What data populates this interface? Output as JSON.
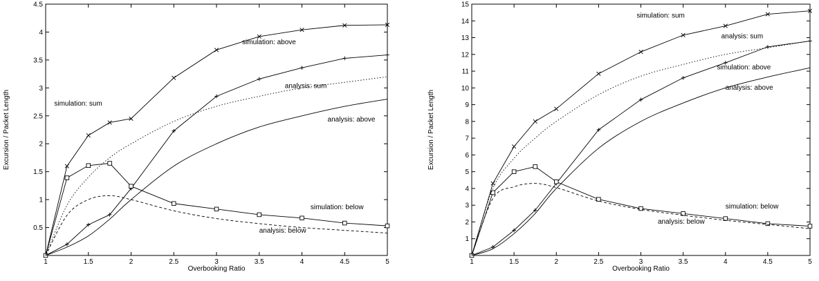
{
  "chart_data": [
    {
      "type": "line",
      "xlabel": "Overbooking Ratio",
      "ylabel": "Excursion / Packet Length",
      "xlim": [
        1,
        5
      ],
      "ylim": [
        0,
        4.5
      ],
      "xticks": [
        1,
        1.5,
        2,
        2.5,
        3,
        3.5,
        4,
        4.5,
        5
      ],
      "yticks": [
        0.5,
        1,
        1.5,
        2,
        2.5,
        3,
        3.5,
        4,
        4.5
      ],
      "grid": false,
      "series": [
        {
          "name": "simulation: sum",
          "style": "solid",
          "marker": "x",
          "x": [
            1,
            1.25,
            1.5,
            1.75,
            2,
            2.5,
            3,
            3.5,
            4,
            4.5,
            5
          ],
          "y": [
            0,
            1.6,
            2.15,
            2.38,
            2.45,
            3.18,
            3.68,
            3.92,
            4.04,
            4.12,
            4.13
          ]
        },
        {
          "name": "simulation: above",
          "style": "solid",
          "marker": "+",
          "x": [
            1,
            1.25,
            1.5,
            1.75,
            2,
            2.5,
            3,
            3.5,
            4,
            4.5,
            5
          ],
          "y": [
            0,
            0.2,
            0.55,
            0.73,
            1.2,
            2.23,
            2.85,
            3.16,
            3.36,
            3.53,
            3.59
          ]
        },
        {
          "name": "simulation: below",
          "style": "solid",
          "marker": "square",
          "x": [
            1,
            1.25,
            1.5,
            1.75,
            2,
            2.5,
            3,
            3.5,
            4,
            4.5,
            5
          ],
          "y": [
            0,
            1.39,
            1.61,
            1.65,
            1.24,
            0.93,
            0.83,
            0.73,
            0.67,
            0.58,
            0.53
          ]
        },
        {
          "name": "analysis: sum",
          "style": "dotted",
          "marker": "none",
          "x": [
            1,
            1.25,
            1.5,
            1.75,
            2,
            2.5,
            3,
            3.5,
            4,
            4.5,
            5
          ],
          "y": [
            0,
            0.9,
            1.4,
            1.75,
            2.0,
            2.4,
            2.67,
            2.85,
            3.0,
            3.1,
            3.2
          ]
        },
        {
          "name": "analysis: above",
          "style": "solid",
          "marker": "none",
          "x": [
            1,
            1.25,
            1.5,
            1.75,
            2,
            2.5,
            3,
            3.5,
            4,
            4.5,
            5
          ],
          "y": [
            0,
            0.15,
            0.35,
            0.65,
            1.0,
            1.6,
            2.0,
            2.3,
            2.5,
            2.67,
            2.8
          ]
        },
        {
          "name": "analysis: below",
          "style": "dashed",
          "marker": "none",
          "x": [
            1,
            1.25,
            1.5,
            1.75,
            2,
            2.5,
            3,
            3.5,
            4,
            4.5,
            5
          ],
          "y": [
            0,
            0.72,
            1.0,
            1.07,
            1.0,
            0.8,
            0.66,
            0.57,
            0.5,
            0.45,
            0.4
          ]
        }
      ],
      "annotations": [
        {
          "text": "simulation: sum",
          "x": 1.1,
          "y": 2.68
        },
        {
          "text": "simulation: above",
          "x": 3.3,
          "y": 3.78
        },
        {
          "text": "analysis: sum",
          "x": 3.8,
          "y": 3.0
        },
        {
          "text": "analysis: above",
          "x": 4.3,
          "y": 2.4
        },
        {
          "text": "simulation: below",
          "x": 4.1,
          "y": 0.83
        },
        {
          "text": "analysis: below",
          "x": 3.5,
          "y": 0.41
        }
      ]
    },
    {
      "type": "line",
      "xlabel": "Overbooking Ratio",
      "ylabel": "Excursion / Packet Length",
      "xlim": [
        1,
        5
      ],
      "ylim": [
        0,
        15
      ],
      "xticks": [
        1,
        1.5,
        2,
        2.5,
        3,
        3.5,
        4,
        4.5,
        5
      ],
      "yticks": [
        1,
        2,
        3,
        4,
        5,
        6,
        7,
        8,
        9,
        10,
        11,
        12,
        13,
        14,
        15
      ],
      "grid": false,
      "series": [
        {
          "name": "simulation: sum",
          "style": "solid",
          "marker": "x",
          "x": [
            1,
            1.25,
            1.5,
            1.75,
            2,
            2.5,
            3,
            3.5,
            4,
            4.5,
            5
          ],
          "y": [
            0,
            4.3,
            6.5,
            8.0,
            8.75,
            10.85,
            12.15,
            13.15,
            13.7,
            14.4,
            14.6
          ]
        },
        {
          "name": "simulation: above",
          "style": "solid",
          "marker": "+",
          "x": [
            1,
            1.25,
            1.5,
            1.75,
            2,
            2.5,
            3,
            3.5,
            4,
            4.5,
            5
          ],
          "y": [
            0,
            0.5,
            1.5,
            2.7,
            4.3,
            7.5,
            9.3,
            10.6,
            11.5,
            12.45,
            12.8
          ]
        },
        {
          "name": "simulation: below",
          "style": "solid",
          "marker": "square",
          "x": [
            1,
            1.25,
            1.5,
            1.75,
            2,
            2.5,
            3,
            3.5,
            4,
            4.5,
            5
          ],
          "y": [
            0,
            3.75,
            5.0,
            5.3,
            4.4,
            3.35,
            2.8,
            2.5,
            2.2,
            1.9,
            1.75
          ]
        },
        {
          "name": "analysis: sum",
          "style": "dotted",
          "marker": "none",
          "x": [
            1,
            1.25,
            1.5,
            1.75,
            2,
            2.5,
            3,
            3.5,
            4,
            4.5,
            5
          ],
          "y": [
            0,
            4.0,
            5.8,
            7.0,
            8.0,
            9.6,
            10.7,
            11.4,
            12.0,
            12.4,
            12.8
          ]
        },
        {
          "name": "analysis: above",
          "style": "solid",
          "marker": "none",
          "x": [
            1,
            1.25,
            1.5,
            1.75,
            2,
            2.5,
            3,
            3.5,
            4,
            4.5,
            5
          ],
          "y": [
            0,
            0.4,
            1.3,
            2.5,
            4.0,
            6.4,
            8.0,
            9.1,
            10.0,
            10.65,
            11.2
          ]
        },
        {
          "name": "analysis: below",
          "style": "dashed",
          "marker": "none",
          "x": [
            1,
            1.25,
            1.5,
            1.75,
            2,
            2.5,
            3,
            3.5,
            4,
            4.5,
            5
          ],
          "y": [
            0,
            3.4,
            4.1,
            4.3,
            4.05,
            3.25,
            2.75,
            2.4,
            2.1,
            1.85,
            1.6
          ]
        }
      ],
      "annotations": [
        {
          "text": "simulation: sum",
          "x": 2.95,
          "y": 14.2
        },
        {
          "text": "analysis: sum",
          "x": 3.95,
          "y": 12.95
        },
        {
          "text": "simulation: above",
          "x": 3.9,
          "y": 11.1
        },
        {
          "text": "analysis: above",
          "x": 4.0,
          "y": 9.9
        },
        {
          "text": "simulation: below",
          "x": 4.0,
          "y": 2.8
        },
        {
          "text": "analysis: below",
          "x": 3.2,
          "y": 1.9
        }
      ]
    }
  ]
}
